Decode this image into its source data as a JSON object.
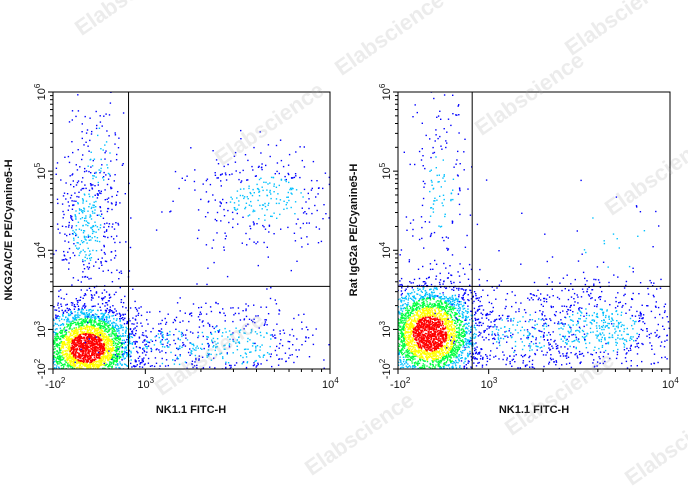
{
  "watermark": "Elabscience",
  "colors": {
    "density_low": "#0000ff",
    "density_mid_low": "#00c0ff",
    "density_mid": "#00ff40",
    "density_mid_high": "#ffff00",
    "density_high": "#ff0000",
    "axis": "#000000",
    "gate": "#000000"
  },
  "chart_data": [
    {
      "type": "scatter",
      "subtype": "flow-cytometry-density-dot-plot",
      "xlabel": "NK1.1 FITC-H",
      "ylabel": "NKG2A/C/E PE/Cyanine5-H",
      "xscale": "biexponential",
      "yscale": "biexponential",
      "xlim": [
        -100,
        10000
      ],
      "ylim": [
        -100,
        1000000
      ],
      "x_ticks": [
        {
          "value": -100,
          "base": "-10",
          "exp": "2"
        },
        {
          "value": 1000,
          "base": "10",
          "exp": "3"
        },
        {
          "value": 10000,
          "base": "10",
          "exp": "4"
        }
      ],
      "y_ticks": [
        {
          "value": -100,
          "base": "-10",
          "exp": "2"
        },
        {
          "value": 1000,
          "base": "10",
          "exp": "3"
        },
        {
          "value": 10000,
          "base": "10",
          "exp": "4"
        },
        {
          "value": 100000,
          "base": "10",
          "exp": "5"
        },
        {
          "value": 1000000,
          "base": "10",
          "exp": "6"
        }
      ],
      "gate": {
        "x": 800,
        "y": 3500
      },
      "populations": [
        {
          "name": "main",
          "cx": 300,
          "cy": 500,
          "sx": 0.09,
          "sy": 0.075,
          "n": 3200
        },
        {
          "name": "upper-left",
          "cx": 300,
          "cy": 20000,
          "sx": 0.06,
          "sy": 0.14,
          "n": 420
        },
        {
          "name": "upper-right",
          "cx": 4500,
          "cy": 45000,
          "sx": 0.15,
          "sy": 0.09,
          "n": 360
        },
        {
          "name": "lower-right",
          "cx": 3000,
          "cy": 600,
          "sx": 0.17,
          "sy": 0.08,
          "n": 420
        },
        {
          "name": "lower-mid-scatter",
          "cx": 1400,
          "cy": 500,
          "sx": 0.12,
          "sy": 0.07,
          "n": 200
        },
        {
          "name": "diagonal-streak",
          "cx": 450,
          "cy": 150000,
          "sx": 0.05,
          "sy": 0.12,
          "n": 90
        }
      ],
      "grid": false,
      "legend": "none"
    },
    {
      "type": "scatter",
      "subtype": "flow-cytometry-density-dot-plot",
      "xlabel": "NK1.1 FITC-H",
      "ylabel": "Rat IgG2a PE/Cyanine5-H",
      "xscale": "biexponential",
      "yscale": "biexponential",
      "xlim": [
        -100,
        10000
      ],
      "ylim": [
        -100,
        1000000
      ],
      "x_ticks": [
        {
          "value": -100,
          "base": "-10",
          "exp": "2"
        },
        {
          "value": 1000,
          "base": "10",
          "exp": "3"
        },
        {
          "value": 10000,
          "base": "10",
          "exp": "4"
        }
      ],
      "y_ticks": [
        {
          "value": -100,
          "base": "-10",
          "exp": "2"
        },
        {
          "value": 1000,
          "base": "10",
          "exp": "3"
        },
        {
          "value": 10000,
          "base": "10",
          "exp": "4"
        },
        {
          "value": 100000,
          "base": "10",
          "exp": "5"
        },
        {
          "value": 1000000,
          "base": "10",
          "exp": "6"
        }
      ],
      "gate": {
        "x": 800,
        "y": 3500
      },
      "populations": [
        {
          "name": "main",
          "cx": 280,
          "cy": 900,
          "sx": 0.09,
          "sy": 0.09,
          "n": 3300
        },
        {
          "name": "lower-right",
          "cx": 4000,
          "cy": 1000,
          "sx": 0.17,
          "sy": 0.09,
          "n": 700
        },
        {
          "name": "lower-mid-scatter",
          "cx": 1500,
          "cy": 900,
          "sx": 0.12,
          "sy": 0.08,
          "n": 260
        },
        {
          "name": "diagonal-streak",
          "cx": 400,
          "cy": 60000,
          "sx": 0.06,
          "sy": 0.16,
          "n": 160
        },
        {
          "name": "upper-right-sparse",
          "cx": 5000,
          "cy": 15000,
          "sx": 0.14,
          "sy": 0.14,
          "n": 30
        }
      ],
      "grid": false,
      "legend": "none"
    }
  ]
}
